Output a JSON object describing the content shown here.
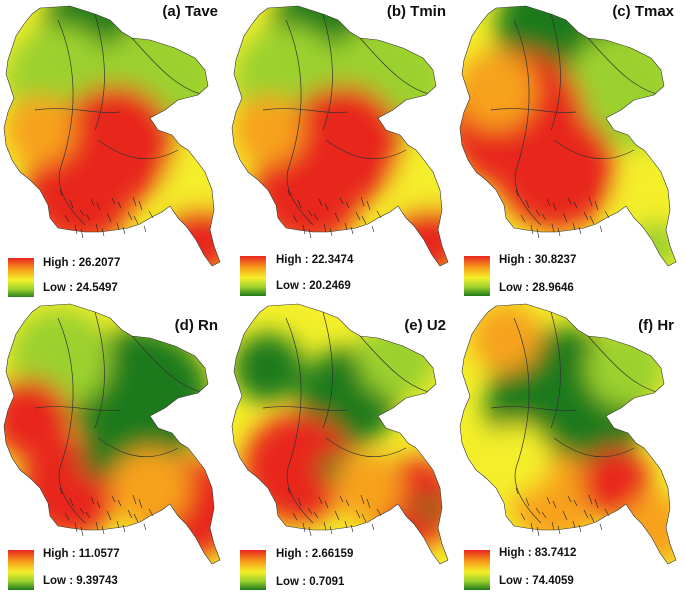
{
  "figure": {
    "panels": [
      {
        "id": "a",
        "title": "(a) Tave",
        "legend_high": "High : 26.2077",
        "legend_low": "Low : 24.5497",
        "dominant": "red-center-south"
      },
      {
        "id": "b",
        "title": "(b) Tmin",
        "legend_high": "High : 22.3474",
        "legend_low": "Low : 20.2469",
        "dominant": "red-center-south"
      },
      {
        "id": "c",
        "title": "(c) Tmax",
        "legend_high": "High : 30.8237",
        "legend_low": "Low : 28.9646",
        "dominant": "red-west"
      },
      {
        "id": "d",
        "title": "(d) Rn",
        "legend_high": "High : 11.0577",
        "legend_low": "Low : 9.39743",
        "dominant": "green-north-east"
      },
      {
        "id": "e",
        "title": "(e) U2",
        "legend_high": "High : 2.66159",
        "legend_low": "Low : 0.7091",
        "dominant": "mixed"
      },
      {
        "id": "f",
        "title": "(f) Hr",
        "legend_high": "High : 83.7412",
        "legend_low": "Low : 74.4059",
        "dominant": "green-center"
      }
    ],
    "colors": {
      "high": "#e8271f",
      "mid_high": "#f7a21b",
      "mid": "#f4ef2a",
      "mid_low": "#9bd12f",
      "low": "#1f7a1a",
      "boundary": "#333333"
    }
  }
}
